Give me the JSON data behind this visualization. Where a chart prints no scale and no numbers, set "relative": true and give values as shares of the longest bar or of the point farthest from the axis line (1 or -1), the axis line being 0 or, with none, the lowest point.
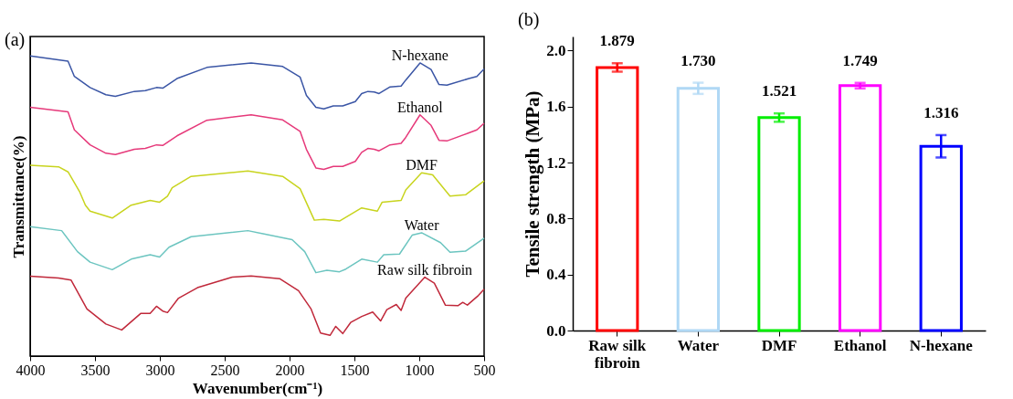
{
  "chart_data": [
    {
      "type": "line",
      "title": "(a)",
      "xlabel": "Wavenumber(cm⁻¹)",
      "ylabel": "Transmittance(%)",
      "relative": true,
      "tick_labels": "x",
      "xlim": [
        4000,
        500
      ],
      "xticks": [
        4000,
        3500,
        3000,
        2500,
        2000,
        1500,
        1000,
        500
      ],
      "series": [
        {
          "name": "N-hexane",
          "color": "#3a55a5",
          "x": [
            4000,
            3708,
            3659,
            3538,
            3416,
            3343,
            3197,
            3112,
            3026,
            2978,
            2868,
            2637,
            2296,
            2053,
            1919,
            1870,
            1797,
            1736,
            1663,
            1590,
            1493,
            1444,
            1396,
            1347,
            1310,
            1225,
            1140,
            1104,
            994,
            909,
            848,
            787,
            617,
            556,
            500
          ],
          "values": [
            1.0,
            0.983,
            0.932,
            0.895,
            0.871,
            0.866,
            0.882,
            0.885,
            0.895,
            0.893,
            0.925,
            0.962,
            0.977,
            0.965,
            0.93,
            0.869,
            0.829,
            0.824,
            0.834,
            0.834,
            0.848,
            0.875,
            0.882,
            0.88,
            0.875,
            0.897,
            0.9,
            0.92,
            0.977,
            0.955,
            0.905,
            0.903,
            0.925,
            0.932,
            0.957
          ]
        },
        {
          "name": "Ethanol",
          "color": "#e6397a",
          "x": [
            4000,
            3708,
            3659,
            3538,
            3416,
            3343,
            3197,
            3112,
            3026,
            2978,
            2868,
            2637,
            2296,
            2053,
            1919,
            1870,
            1797,
            1736,
            1663,
            1590,
            1493,
            1444,
            1396,
            1347,
            1310,
            1225,
            1140,
            1104,
            994,
            909,
            848,
            787,
            617,
            556,
            500
          ],
          "values": [
            0.829,
            0.814,
            0.754,
            0.704,
            0.676,
            0.672,
            0.689,
            0.692,
            0.704,
            0.702,
            0.734,
            0.786,
            0.804,
            0.787,
            0.749,
            0.689,
            0.627,
            0.622,
            0.632,
            0.632,
            0.649,
            0.679,
            0.692,
            0.689,
            0.684,
            0.704,
            0.709,
            0.729,
            0.804,
            0.769,
            0.719,
            0.717,
            0.744,
            0.754,
            0.776
          ]
        },
        {
          "name": "DMF",
          "color": "#c8d41e",
          "x": [
            4000,
            3781,
            3708,
            3620,
            3574,
            3538,
            3367,
            3221,
            3075,
            3002,
            2941,
            2905,
            2759,
            2321,
            2053,
            1919,
            1809,
            1736,
            1615,
            1444,
            1323,
            1286,
            1140,
            1104,
            982,
            897,
            763,
            641,
            500
          ],
          "values": [
            0.636,
            0.631,
            0.614,
            0.549,
            0.503,
            0.483,
            0.46,
            0.503,
            0.519,
            0.513,
            0.533,
            0.561,
            0.599,
            0.617,
            0.599,
            0.558,
            0.453,
            0.456,
            0.45,
            0.494,
            0.483,
            0.513,
            0.519,
            0.554,
            0.611,
            0.604,
            0.533,
            0.538,
            0.584
          ]
        },
        {
          "name": "Water",
          "color": "#6cc5c0",
          "x": [
            4000,
            3757,
            3635,
            3538,
            3367,
            3221,
            3075,
            3002,
            2929,
            2759,
            2321,
            1980,
            1883,
            1797,
            1712,
            1615,
            1566,
            1444,
            1323,
            1274,
            1152,
            1055,
            982,
            836,
            763,
            641,
            500
          ],
          "values": [
            0.431,
            0.418,
            0.348,
            0.313,
            0.288,
            0.323,
            0.338,
            0.33,
            0.363,
            0.398,
            0.418,
            0.388,
            0.348,
            0.278,
            0.286,
            0.281,
            0.29,
            0.323,
            0.313,
            0.338,
            0.34,
            0.403,
            0.411,
            0.378,
            0.346,
            0.35,
            0.393
          ]
        },
        {
          "name": "Raw silk fibroin",
          "color": "#c0283a",
          "x": [
            4000,
            3781,
            3684,
            3562,
            3416,
            3294,
            3148,
            3075,
            3026,
            2978,
            2941,
            2856,
            2710,
            2442,
            2296,
            2077,
            1931,
            1834,
            1761,
            1688,
            1644,
            1590,
            1529,
            1444,
            1359,
            1298,
            1250,
            1177,
            1140,
            1104,
            957,
            884,
            799,
            702,
            665,
            629,
            544,
            500
          ],
          "values": [
            0.266,
            0.26,
            0.253,
            0.157,
            0.107,
            0.087,
            0.142,
            0.142,
            0.166,
            0.15,
            0.145,
            0.193,
            0.228,
            0.263,
            0.267,
            0.258,
            0.218,
            0.157,
            0.077,
            0.069,
            0.099,
            0.075,
            0.112,
            0.132,
            0.147,
            0.117,
            0.155,
            0.172,
            0.152,
            0.193,
            0.263,
            0.243,
            0.17,
            0.168,
            0.179,
            0.17,
            0.202,
            0.223
          ]
        }
      ]
    },
    {
      "type": "bar",
      "title": "(b)",
      "ylabel": "Tensile strength (MPa)",
      "categories": [
        "Raw silk fibroin",
        "Water",
        "DMF",
        "Ethanol",
        "N-hexane"
      ],
      "values": [
        1.879,
        1.73,
        1.521,
        1.749,
        1.316
      ],
      "errors": [
        0.03,
        0.04,
        0.03,
        0.02,
        0.08
      ],
      "value_labels": [
        "1.879",
        "1.730",
        "1.521",
        "1.749",
        "1.316"
      ],
      "colors": [
        "#ff0000",
        "#b0d8f5",
        "#00ee00",
        "#ff00ff",
        "#0000ff"
      ],
      "ylim": [
        0,
        2.1
      ],
      "yticks": [
        {
          "value": 0,
          "label": "0.0"
        },
        0.4,
        0.8,
        1.2,
        1.6,
        {
          "value": 2,
          "label": "2.0"
        }
      ]
    }
  ]
}
